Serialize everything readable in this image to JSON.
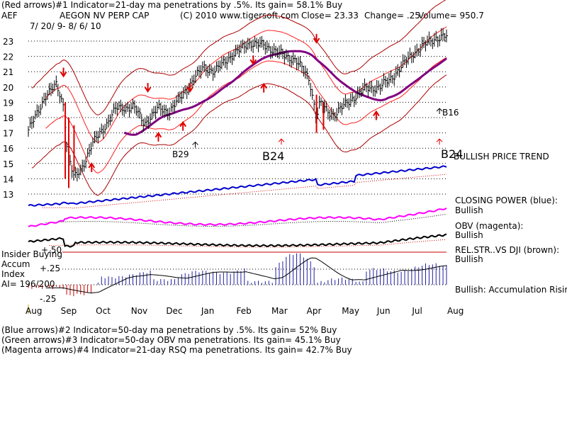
{
  "header": {
    "line1": "(Red arrows)#1 Indicator=21-day ma penetrations by .5%. Its gain= 58.1% Buy",
    "ticker": "AEF",
    "name": "AEGON NV PERP CAP",
    "copyright": "(C) 2010 www.tigersoft.com",
    "close": "Close=  23.33",
    "change": "Change= .25",
    "volume": "Volume= 950.7",
    "date_range": "7/ 20/ 9- 8/ 6/ 10"
  },
  "chart_data": {
    "type": "line",
    "x_labels": [
      "Aug",
      "Sep",
      "Oct",
      "Nov",
      "Dec",
      "Jan",
      "Feb",
      "Mar",
      "Apr",
      "May",
      "Jun",
      "Jul",
      "Aug"
    ],
    "price_ylabels": [
      "23",
      "22",
      "21",
      "20",
      "19",
      "18",
      "17",
      "16",
      "15",
      "14",
      "13"
    ],
    "price_ylim": [
      12.5,
      23.5
    ],
    "price": {
      "x": [
        0,
        0.2,
        0.5,
        0.8,
        1.0,
        1.1,
        1.3,
        1.5,
        1.8,
        2.2,
        2.5,
        3.0,
        3.3,
        3.7,
        4.0,
        4.3,
        4.7,
        5.0,
        5.3,
        5.7,
        6.0,
        6.3,
        6.7,
        7.0,
        7.3,
        7.6,
        8.0,
        8.2,
        8.3,
        8.5,
        8.7,
        9.0,
        9.3,
        9.6,
        10.0,
        10.3,
        10.6,
        11.0,
        11.3,
        11.6,
        11.8
      ],
      "y": [
        17.2,
        18.0,
        19.5,
        20.1,
        18.8,
        16.0,
        14.0,
        14.6,
        16.2,
        17.5,
        18.6,
        18.7,
        17.6,
        18.6,
        18.4,
        19.2,
        20.5,
        21.3,
        21.0,
        21.9,
        22.4,
        22.9,
        22.7,
        22.4,
        22.0,
        21.8,
        20.5,
        18.0,
        19.0,
        18.4,
        18.2,
        18.8,
        19.4,
        19.9,
        20.0,
        20.5,
        21.3,
        22.3,
        22.8,
        23.2,
        23.3
      ]
    },
    "annotations": {
      "b29": "B29",
      "b24": "B24",
      "b16": "B16",
      "b24_right": "B24"
    },
    "indicator_labels": {
      "price_trend": "BULLISH PRICE TREND",
      "closing_power": "CLOSING POWER (blue):",
      "closing_power_state": "Bullish",
      "obv": "OBV (magenta):",
      "obv_state": "Bullish",
      "relstr": "REL.STR..VS DJI (brown):",
      "relstr_state": "Bullish",
      "accum": "Bullish: Accumulation Rising"
    },
    "insider": {
      "title1": "Insider Buying",
      "title2": "Accum",
      "title3": "Index",
      "ai": "AI= 196/200",
      "levels": [
        "+.50",
        "+.25",
        "-.25"
      ]
    }
  },
  "footer": {
    "line1": "(Blue arrows)#2 Indicator=50-day ma penetrations by .5%. Its gain= 52% Buy",
    "line2": "(Green arrows)#3 Indicator=50-day OBV ma penetrations. Its gain= 45.1% Buy",
    "line3": "(Magenta arrows)#4 Indicator=21-day RSQ ma penetrations. Its gain= 42.7% Buy"
  },
  "colors": {
    "price": "#000000",
    "band": "#cc0000",
    "ma50": "#800080",
    "closing_power": "#0000cc",
    "obv": "#ff00ff",
    "relstr": "#000000",
    "accum_pos": "#2020a0",
    "accum_neg": "#cc0000"
  }
}
